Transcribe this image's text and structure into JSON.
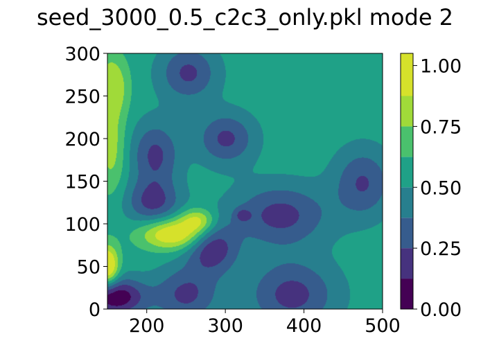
{
  "chart_data": {
    "type": "heatmap",
    "title": "seed_3000_0.5_c2c3_only.pkl mode 2",
    "xlabel": "",
    "ylabel": "",
    "xlim": [
      150,
      500
    ],
    "ylim": [
      0,
      300
    ],
    "xticks": [
      "200",
      "300",
      "400",
      "500"
    ],
    "yticks": [
      "0",
      "50",
      "100",
      "150",
      "200",
      "250",
      "300"
    ],
    "colorbar": {
      "ticks": [
        "0.00",
        "0.25",
        "0.50",
        "0.75",
        "1.00"
      ],
      "levels": [
        0.0,
        0.125,
        0.25,
        0.375,
        0.5,
        0.625,
        0.75,
        0.875,
        1.0
      ],
      "colors": [
        "#440154",
        "#46327e",
        "#365c8d",
        "#277f8e",
        "#1fa187",
        "#4ac16d",
        "#a0da39",
        "#d6e12b"
      ]
    },
    "background_level": 0.56,
    "features": [
      {
        "x": 253,
        "y": 277,
        "rx": 36,
        "ry": 32,
        "depth": 0.34
      },
      {
        "x": 301,
        "y": 200,
        "rx": 36,
        "ry": 30,
        "depth": 0.34
      },
      {
        "x": 211,
        "y": 181,
        "rx": 30,
        "ry": 38,
        "depth": 0.34
      },
      {
        "x": 208,
        "y": 125,
        "rx": 34,
        "ry": 26,
        "depth": 0.34
      },
      {
        "x": 475,
        "y": 148,
        "rx": 36,
        "ry": 40,
        "depth": 0.32
      },
      {
        "x": 370,
        "y": 110,
        "rx": 60,
        "ry": 36,
        "depth": 0.36
      },
      {
        "x": 322,
        "y": 110,
        "rx": 10,
        "ry": 8,
        "depth": 0.2
      },
      {
        "x": 283,
        "y": 72,
        "rx": 32,
        "ry": 30,
        "depth": 0.42
      },
      {
        "x": 250,
        "y": 17,
        "rx": 40,
        "ry": 32,
        "depth": 0.34
      },
      {
        "x": 385,
        "y": 17,
        "rx": 55,
        "ry": 40,
        "depth": 0.36
      },
      {
        "x": 160,
        "y": 14,
        "rx": 38,
        "ry": 22,
        "depth": 0.55
      },
      {
        "x": 235,
        "y": 88,
        "rx": 42,
        "ry": 18,
        "depth": -0.5
      },
      {
        "x": 265,
        "y": 104,
        "rx": 22,
        "ry": 14,
        "depth": -0.35
      },
      {
        "x": 150,
        "y": 50,
        "rx": 14,
        "ry": 24,
        "depth": -0.55
      },
      {
        "x": 155,
        "y": 190,
        "rx": 18,
        "ry": 55,
        "depth": -0.25
      },
      {
        "x": 160,
        "y": 262,
        "rx": 18,
        "ry": 35,
        "depth": -0.25
      },
      {
        "x": 150,
        "y": 280,
        "rx": 12,
        "ry": 20,
        "depth": -0.08
      }
    ]
  }
}
